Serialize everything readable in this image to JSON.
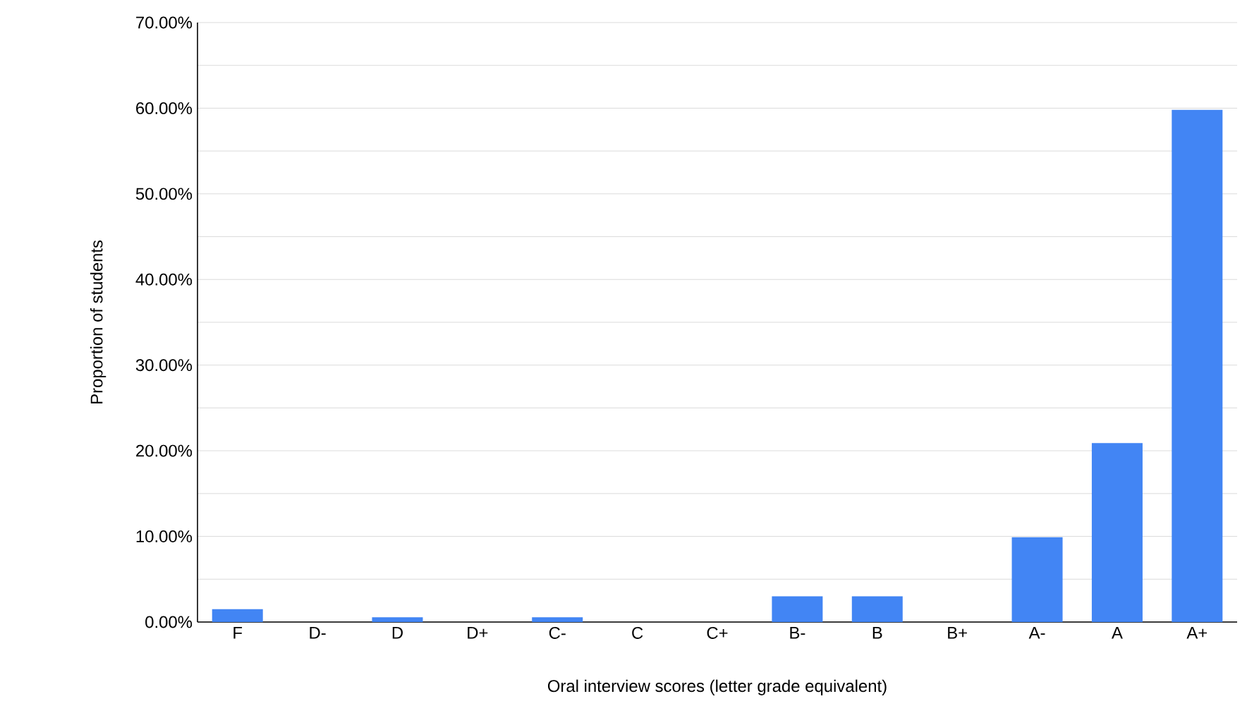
{
  "chart_data": {
    "type": "bar",
    "xlabel": "Oral interview scores (letter grade equivalent)",
    "ylabel": "Proportion of students",
    "categories": [
      "F",
      "D-",
      "D",
      "D+",
      "C-",
      "C",
      "C+",
      "B-",
      "B",
      "B+",
      "A-",
      "A",
      "A+"
    ],
    "values": [
      1.5,
      0,
      0.55,
      0,
      0.55,
      0,
      0,
      3.0,
      3.0,
      0,
      9.9,
      20.9,
      59.8
    ],
    "color": "#4285f4",
    "ylim": [
      0,
      70
    ],
    "yticks": [
      {
        "value": 0,
        "label": "0.00%"
      },
      {
        "value": 5,
        "label": null
      },
      {
        "value": 10,
        "label": "10.00%"
      },
      {
        "value": 15,
        "label": null
      },
      {
        "value": 20,
        "label": "20.00%"
      },
      {
        "value": 25,
        "label": null
      },
      {
        "value": 30,
        "label": "30.00%"
      },
      {
        "value": 35,
        "label": null
      },
      {
        "value": 40,
        "label": "40.00%"
      },
      {
        "value": 45,
        "label": null
      },
      {
        "value": 50,
        "label": "50.00%"
      },
      {
        "value": 55,
        "label": null
      },
      {
        "value": 60,
        "label": "60.00%"
      },
      {
        "value": 65,
        "label": null
      },
      {
        "value": 70,
        "label": "70.00%"
      }
    ],
    "grid": "y"
  }
}
